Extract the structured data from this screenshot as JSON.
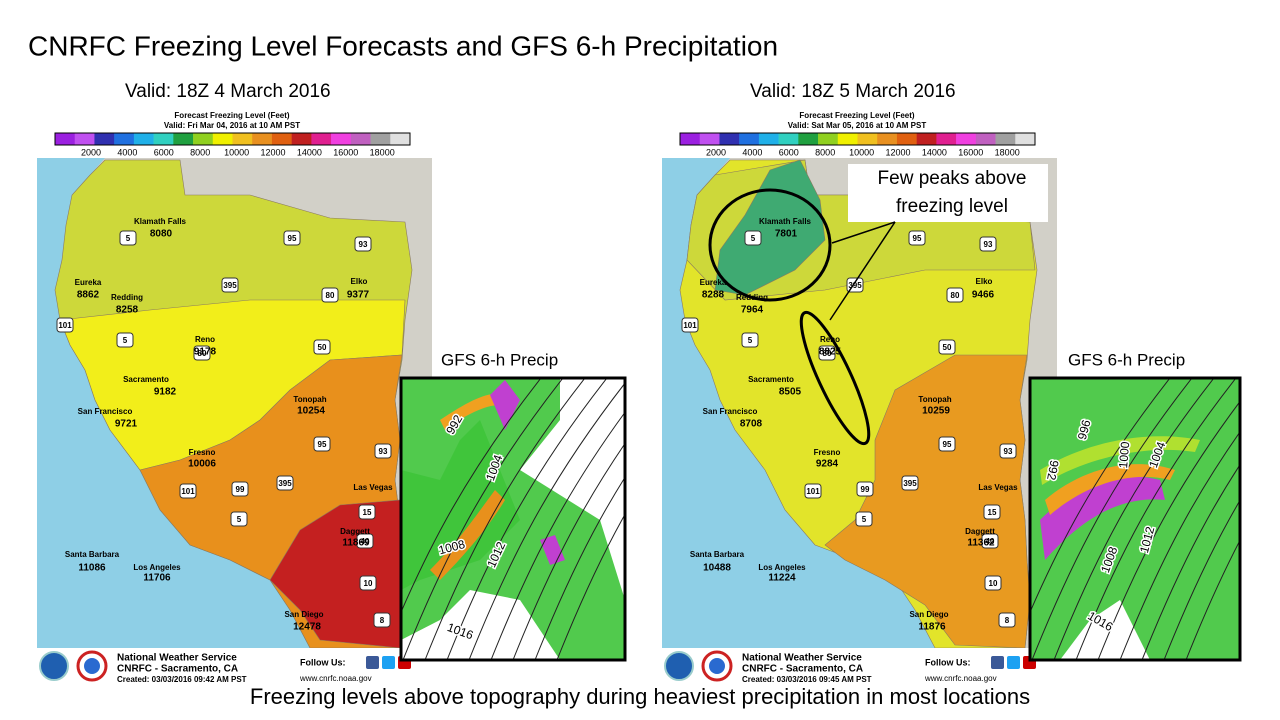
{
  "title": "CNRFC Freezing Level Forecasts and GFS 6-h Precipitation",
  "caption": "Freezing levels above topography during heaviest precipitation in most locations",
  "annotation": [
    "Few peaks above",
    "freezing level"
  ],
  "panels": [
    {
      "valid": "Valid: 18Z 4 March 2016",
      "legend_title": "Forecast Freezing Level (Feet)",
      "legend_valid": "Valid: Fri Mar 04, 2016 at 10 AM PST",
      "legend_ticks": [
        2000,
        4000,
        6000,
        8000,
        10000,
        12000,
        14000,
        16000,
        18000
      ],
      "cities": [
        {
          "name": "Klamath Falls",
          "value": 8080
        },
        {
          "name": "Eureka",
          "value": 8862
        },
        {
          "name": "Redding",
          "value": 8258
        },
        {
          "name": "Elko",
          "value": 9377
        },
        {
          "name": "Reno",
          "value": 9178
        },
        {
          "name": "Sacramento",
          "value": 9182
        },
        {
          "name": "San Francisco",
          "value": 9721
        },
        {
          "name": "Tonopah",
          "value": 10254
        },
        {
          "name": "Fresno",
          "value": 10006
        },
        {
          "name": "Las Vegas"
        },
        {
          "name": "Daggett",
          "value": 11869
        },
        {
          "name": "Santa Barbara",
          "value": 11086
        },
        {
          "name": "Los Angeles",
          "value": 11706
        },
        {
          "name": "San Diego",
          "value": 12478
        }
      ],
      "shields": [
        "5",
        "95",
        "93",
        "395",
        "80",
        "101",
        "5",
        "80",
        "50",
        "95",
        "93",
        "101",
        "99",
        "395",
        "5",
        "15",
        "40",
        "10",
        "8"
      ],
      "footer": {
        "agency": "National Weather Service",
        "office": "CNRFC - Sacramento, CA",
        "created": "Created: 03/03/2016 09:42 AM PST",
        "follow": "Follow Us:",
        "url": "www.cnrfc.noaa.gov"
      },
      "inset": {
        "label": "GFS 6-h Precip",
        "contours": [
          "992",
          "1004",
          "1008",
          "1012",
          "1016"
        ]
      }
    },
    {
      "valid": "Valid: 18Z 5 March 2016",
      "legend_title": "Forecast Freezing Level (Feet)",
      "legend_valid": "Valid: Sat Mar 05, 2016 at 10 AM PST",
      "legend_ticks": [
        2000,
        4000,
        6000,
        8000,
        10000,
        12000,
        14000,
        16000,
        18000
      ],
      "cities": [
        {
          "name": "Klamath Falls",
          "value": 7801
        },
        {
          "name": "Eureka",
          "value": 8288
        },
        {
          "name": "Redding",
          "value": 7964
        },
        {
          "name": "Elko",
          "value": 9466
        },
        {
          "name": "Reno",
          "value": 8825
        },
        {
          "name": "Sacramento",
          "value": 8505
        },
        {
          "name": "San Francisco",
          "value": 8708
        },
        {
          "name": "Tonopah",
          "value": 10259
        },
        {
          "name": "Fresno",
          "value": 9284
        },
        {
          "name": "Las Vegas"
        },
        {
          "name": "Daggett",
          "value": 11362
        },
        {
          "name": "Santa Barbara",
          "value": 10488
        },
        {
          "name": "Los Angeles",
          "value": 11224
        },
        {
          "name": "San Diego",
          "value": 11876
        }
      ],
      "shields": [
        "5",
        "95",
        "93",
        "395",
        "80",
        "101",
        "5",
        "80",
        "50",
        "95",
        "93",
        "101",
        "99",
        "395",
        "5",
        "15",
        "40",
        "10",
        "8"
      ],
      "footer": {
        "agency": "National Weather Service",
        "office": "CNRFC - Sacramento, CA",
        "created": "Created: 03/03/2016 09:45 AM PST",
        "follow": "Follow Us:",
        "url": "www.cnrfc.noaa.gov"
      },
      "inset": {
        "label": "GFS 6-h Precip",
        "contours": [
          "996",
          "992",
          "1000",
          "1004",
          "1008",
          "1012",
          "1016"
        ]
      }
    }
  ]
}
